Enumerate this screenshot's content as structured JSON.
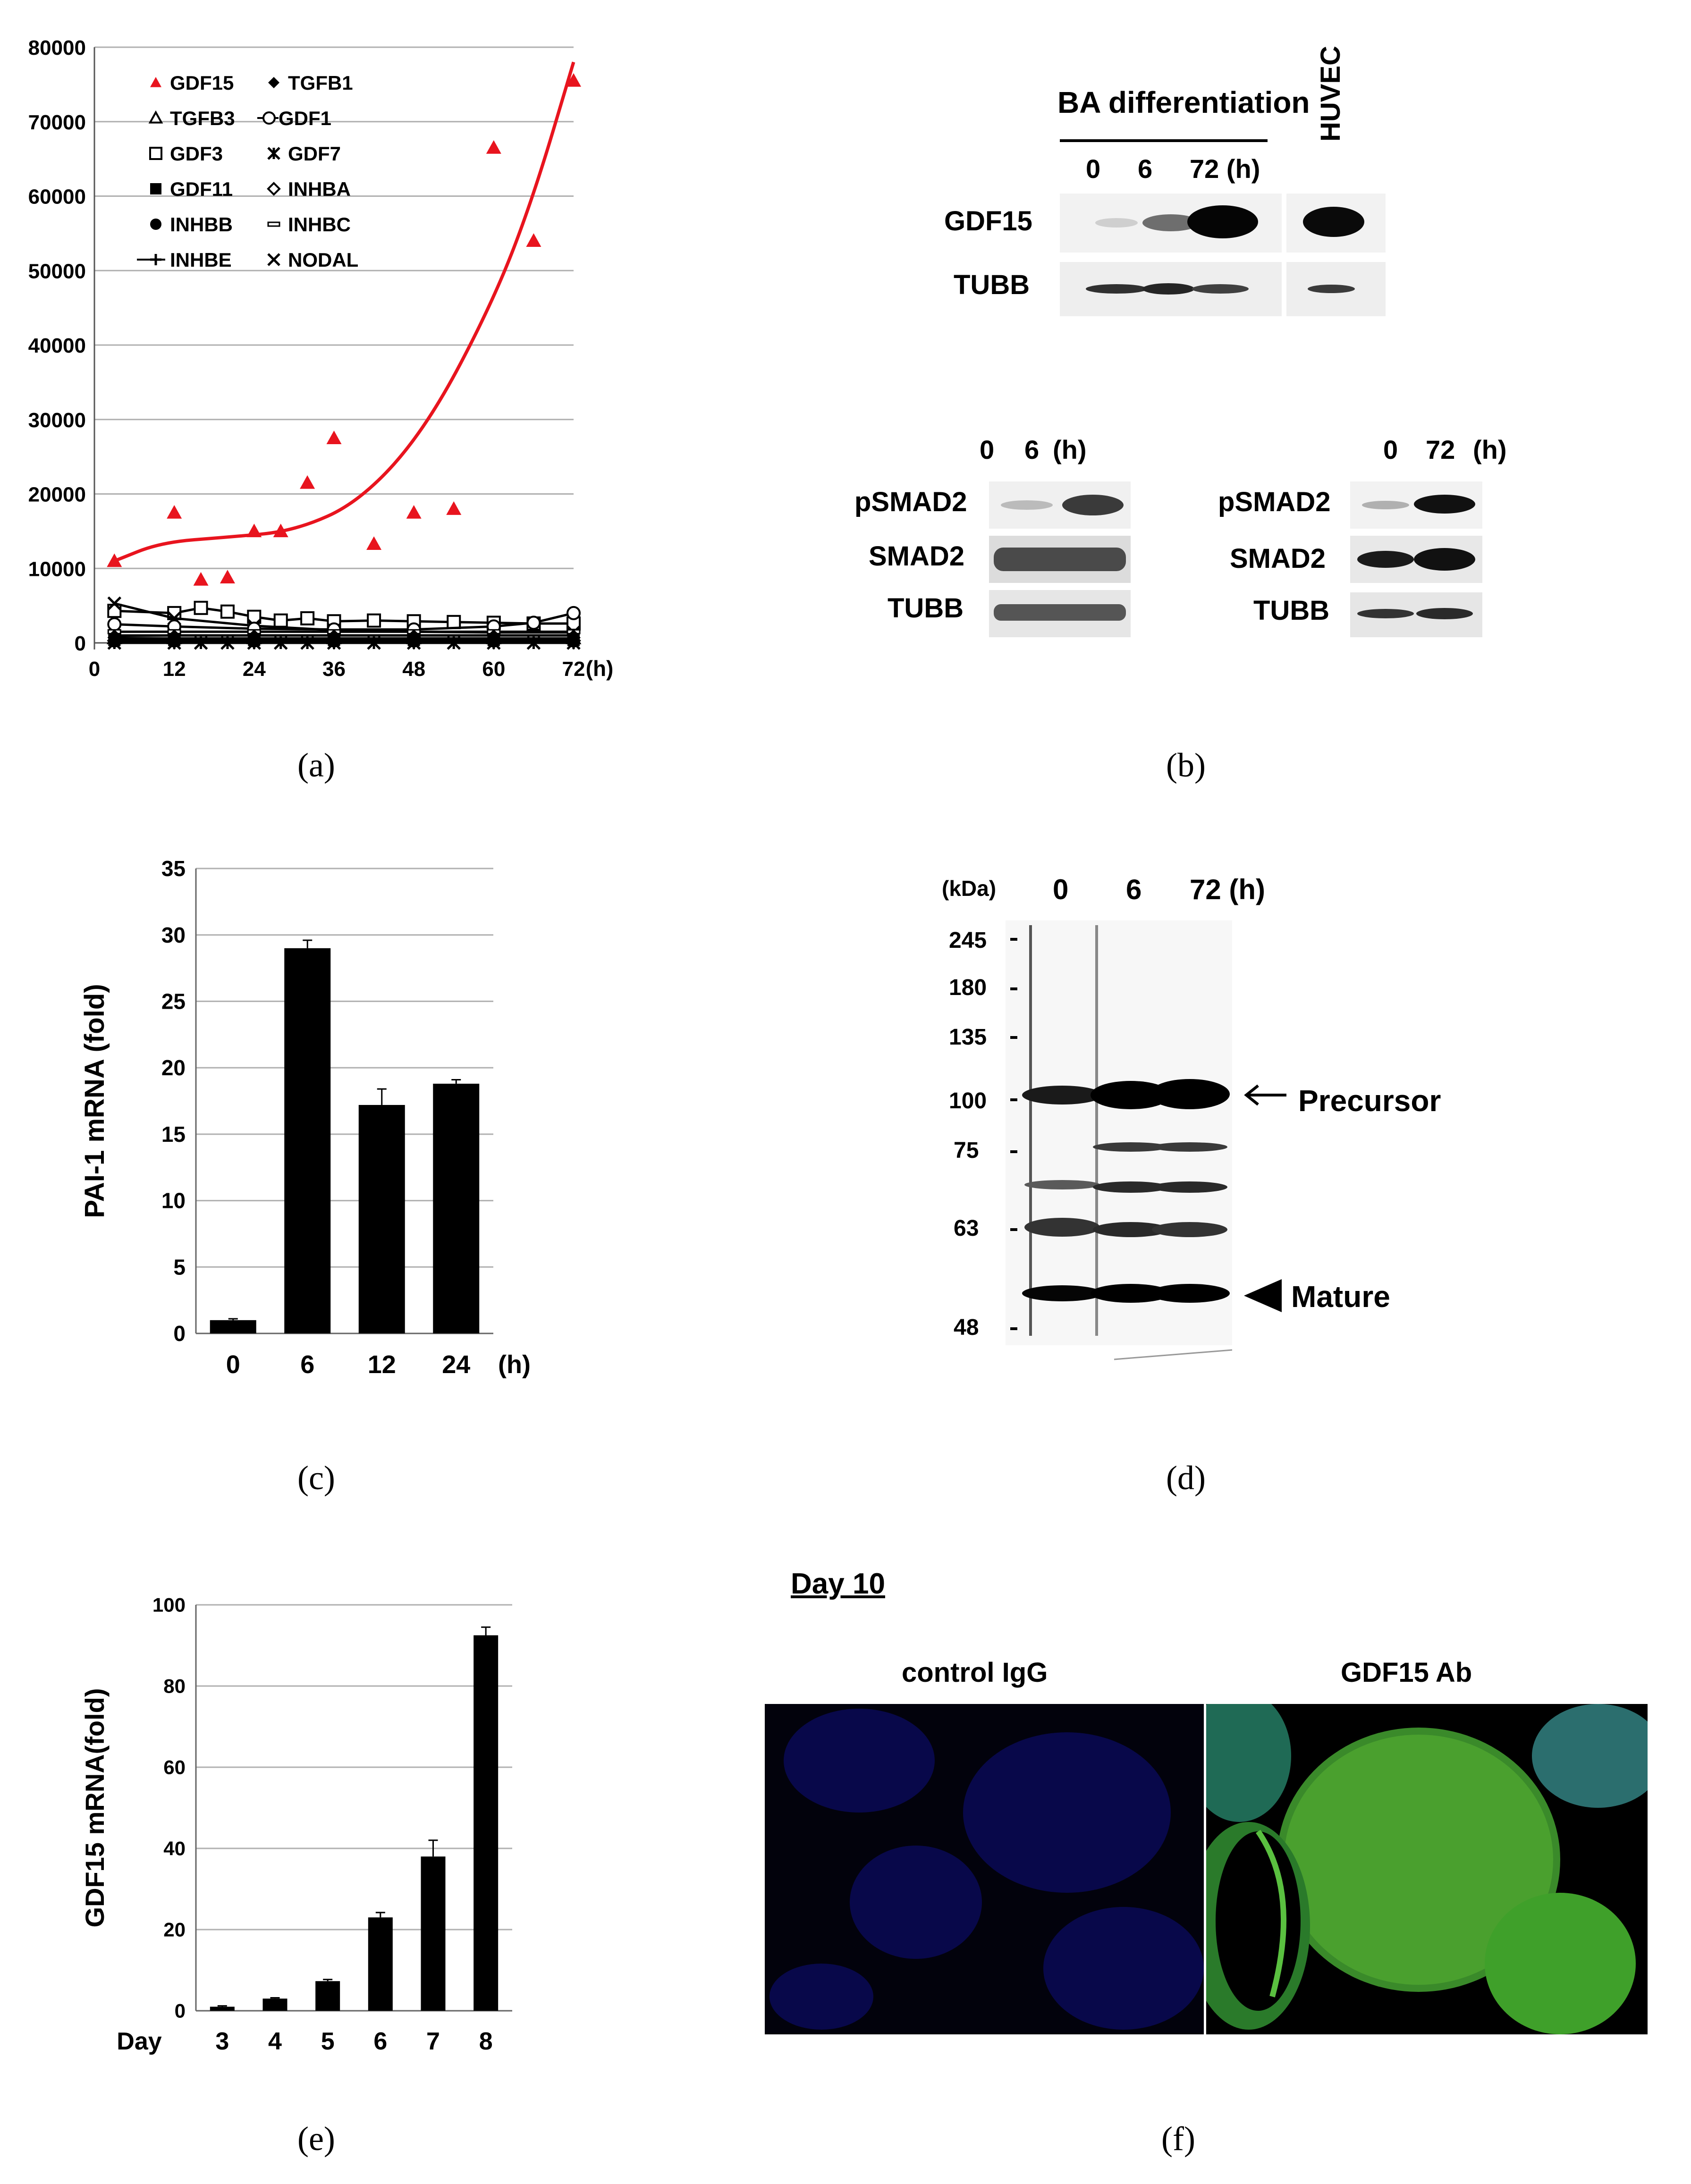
{
  "panels": {
    "a": "(a)",
    "b": "(b)",
    "c": "(c)",
    "d": "(d)",
    "e": "(e)",
    "f": "(f)"
  },
  "chart_data": [
    {
      "type": "scatter",
      "panel": "a",
      "xlabel": "",
      "xunit": "(h)",
      "xlim": [
        0,
        72
      ],
      "ylim": [
        0,
        80000
      ],
      "xticks": [
        "0",
        "12",
        "24",
        "36",
        "48",
        "60",
        "72"
      ],
      "yticks": [
        "0",
        "10000",
        "20000",
        "30000",
        "40000",
        "50000",
        "60000",
        "70000",
        "80000"
      ],
      "grid": true,
      "legend_position": "top-left",
      "legend": [
        "GDF15",
        "TGFB1",
        "TGFB3",
        "GDF1",
        "GDF3",
        "GDF7",
        "GDF11",
        "INHBA",
        "INHBB",
        "INHBC",
        "INHBE",
        "NODAL"
      ],
      "series": [
        {
          "name": "GDF15",
          "color": "#e8141e",
          "marker": "triangle-filled",
          "x": [
            3,
            12,
            16,
            20,
            24,
            28,
            32,
            36,
            42,
            48,
            54,
            60,
            66,
            72
          ],
          "y": [
            11000,
            17500,
            8500,
            8800,
            15000,
            15000,
            21500,
            27500,
            13300,
            17500,
            18000,
            66500,
            54000,
            75500
          ],
          "trend": [
            [
              3,
              11000
            ],
            [
              10,
              13500
            ],
            [
              20,
              14200
            ],
            [
              30,
              15000
            ],
            [
              40,
              19000
            ],
            [
              50,
              29000
            ],
            [
              60,
              46000
            ],
            [
              66,
              60000
            ],
            [
              72,
              78000
            ]
          ]
        },
        {
          "name": "GDF3",
          "color": "#000000",
          "marker": "square-open",
          "x": [
            3,
            12,
            16,
            20,
            24,
            28,
            32,
            36,
            42,
            48,
            54,
            60,
            66,
            72
          ],
          "y": [
            4300,
            4000,
            4700,
            4200,
            3500,
            3000,
            3300,
            2900,
            3000,
            2900,
            2800,
            2700,
            2600,
            2600
          ]
        },
        {
          "name": "NODAL",
          "color": "#000000",
          "marker": "x",
          "x": [
            3,
            12,
            24,
            36,
            48,
            60,
            72
          ],
          "y": [
            5300,
            3300,
            2300,
            1700,
            1500,
            1400,
            1400
          ]
        },
        {
          "name": "GDF1",
          "color": "#000000",
          "marker": "circle-open",
          "x": [
            3,
            12,
            24,
            36,
            48,
            60,
            66,
            72
          ],
          "y": [
            2500,
            2200,
            1900,
            1800,
            1800,
            2200,
            2700,
            4000
          ]
        },
        {
          "name": "INHBC",
          "color": "#000000",
          "marker": "dash",
          "x": [
            3,
            12,
            24,
            36,
            48,
            60,
            72
          ],
          "y": [
            1500,
            1500,
            1500,
            1500,
            1500,
            1500,
            1500
          ]
        },
        {
          "name": "TGFB1",
          "color": "#000000",
          "marker": "diamond-filled",
          "x": [
            3,
            12,
            24,
            36,
            48,
            60,
            72
          ],
          "y": [
            1000,
            1000,
            1000,
            1000,
            1000,
            1000,
            1000
          ]
        },
        {
          "name": "INHBE",
          "color": "#000000",
          "marker": "plus",
          "x": [
            3,
            12,
            24,
            36,
            48,
            60,
            72
          ],
          "y": [
            900,
            1000,
            1000,
            1000,
            1000,
            1000,
            1000
          ]
        },
        {
          "name": "TGFB3",
          "color": "#000000",
          "marker": "triangle-open",
          "x": [
            3,
            12,
            24,
            36,
            48,
            60,
            72
          ],
          "y": [
            600,
            600,
            600,
            600,
            600,
            600,
            600
          ]
        },
        {
          "name": "GDF11",
          "color": "#000000",
          "marker": "square-filled",
          "x": [
            3,
            12,
            24,
            36,
            48,
            60,
            72
          ],
          "y": [
            400,
            400,
            400,
            400,
            400,
            400,
            400
          ]
        },
        {
          "name": "INHBA",
          "color": "#000000",
          "marker": "diamond-open",
          "x": [
            3,
            12,
            24,
            36,
            48,
            60,
            72
          ],
          "y": [
            300,
            300,
            300,
            300,
            300,
            300,
            300
          ]
        },
        {
          "name": "INHBB",
          "color": "#000000",
          "marker": "circle-filled",
          "x": [
            3,
            12,
            24,
            36,
            48,
            60,
            72
          ],
          "y": [
            200,
            200,
            200,
            200,
            200,
            200,
            200
          ]
        },
        {
          "name": "GDF7",
          "color": "#000000",
          "marker": "asterisk",
          "x": [
            3,
            12,
            16,
            20,
            24,
            28,
            32,
            36,
            42,
            48,
            54,
            60,
            66,
            72
          ],
          "y": [
            0,
            0,
            0,
            0,
            0,
            0,
            0,
            0,
            0,
            0,
            0,
            0,
            0,
            0
          ]
        }
      ]
    },
    {
      "type": "bar",
      "panel": "c",
      "categories": [
        "0",
        "6",
        "12",
        "24"
      ],
      "xunit": "(h)",
      "values": [
        1,
        29,
        17.2,
        18.8
      ],
      "errors": [
        0.1,
        0.6,
        1.2,
        0.3
      ],
      "ylabel": "PAI-1 mRNA (fold)",
      "ylim": [
        0,
        35
      ],
      "yticks": [
        "0",
        "5",
        "10",
        "15",
        "20",
        "25",
        "30",
        "35"
      ],
      "grid": true
    },
    {
      "type": "bar",
      "panel": "e",
      "category_label": "Day",
      "categories": [
        "3",
        "4",
        "5",
        "6",
        "7",
        "8"
      ],
      "values": [
        1,
        3,
        7.3,
        23,
        38,
        92.5
      ],
      "errors": [
        0.2,
        0.2,
        0.4,
        1.2,
        4,
        2
      ],
      "ylabel": "GDF15 mRNA(fold)",
      "ylim": [
        0,
        100
      ],
      "yticks": [
        "0",
        "20",
        "40",
        "60",
        "80",
        "100"
      ],
      "grid": true
    }
  ],
  "blot_b": {
    "title": "BA differentiation",
    "lanes": [
      "0",
      "6",
      "72 (h)"
    ],
    "extra_lane": "HUVEC",
    "rows": [
      "GDF15",
      "TUBB"
    ],
    "sub_left": {
      "lanes": [
        "0",
        "6",
        "(h)"
      ],
      "rows": [
        "pSMAD2",
        "SMAD2",
        "TUBB"
      ]
    },
    "sub_right": {
      "lanes": [
        "0",
        "72",
        "(h)"
      ],
      "rows": [
        "pSMAD2",
        "SMAD2",
        "TUBB"
      ]
    }
  },
  "blot_d": {
    "unit": "(kDa)",
    "lanes": [
      "0",
      "6",
      "72 (h)"
    ],
    "markers": [
      "245",
      "180",
      "135",
      "100",
      "75",
      "63",
      "48"
    ],
    "precursor": "Precursor",
    "mature": "Mature"
  },
  "panel_f": {
    "title": "Day 10",
    "left": "control IgG",
    "right": "GDF15 Ab"
  }
}
